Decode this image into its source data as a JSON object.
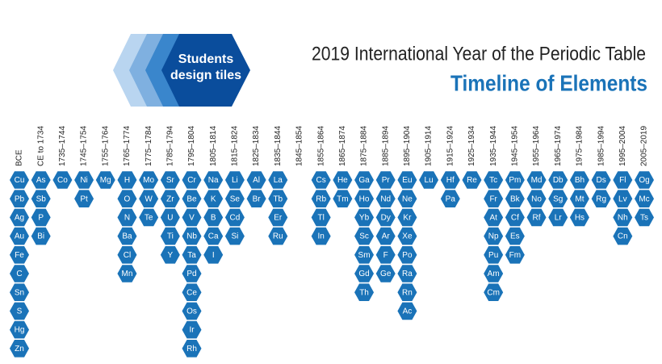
{
  "header": {
    "badge": [
      "Students",
      "design tiles"
    ],
    "title": "2019 International Year of the Periodic Table",
    "subtitle": "Timeline of Elements"
  },
  "columns": [
    {
      "label": "BCE",
      "elements": [
        "Cu",
        "Pb",
        "Ag",
        "Au",
        "Fe",
        "C",
        "Sn",
        "S",
        "Hg",
        "Zn"
      ]
    },
    {
      "label": "CE to 1734",
      "elements": [
        "As",
        "Sb",
        "P",
        "Bi"
      ]
    },
    {
      "label": "1735–1744",
      "elements": [
        "Co"
      ]
    },
    {
      "label": "1745–1754",
      "elements": [
        "Ni",
        "Pt"
      ]
    },
    {
      "label": "1755–1764",
      "elements": [
        "Mg"
      ]
    },
    {
      "label": "1765–1774",
      "elements": [
        "H",
        "O",
        "N",
        "Ba",
        "Cl",
        "Mn"
      ]
    },
    {
      "label": "1775–1784",
      "elements": [
        "Mo",
        "W",
        "Te"
      ]
    },
    {
      "label": "1785–1794",
      "elements": [
        "Sr",
        "Zr",
        "U",
        "Ti",
        "Y"
      ]
    },
    {
      "label": "1795–1804",
      "elements": [
        "Cr",
        "Be",
        "V",
        "Nb",
        "Ta",
        "Pd",
        "Ce",
        "Os",
        "Ir",
        "Rh"
      ]
    },
    {
      "label": "1805–1814",
      "elements": [
        "Na",
        "K",
        "B",
        "Ca",
        "I"
      ]
    },
    {
      "label": "1815–1824",
      "elements": [
        "Li",
        "Se",
        "Cd",
        "Si"
      ]
    },
    {
      "label": "1825–1834",
      "elements": [
        "Al",
        "Br"
      ]
    },
    {
      "label": "1835–1844",
      "elements": [
        "La",
        "Tb",
        "Er",
        "Ru"
      ]
    },
    {
      "label": "1845–1854",
      "elements": []
    },
    {
      "label": "1855–1864",
      "elements": [
        "Cs",
        "Rb",
        "Tl",
        "In"
      ]
    },
    {
      "label": "1865–1874",
      "elements": [
        "He",
        "Tm"
      ]
    },
    {
      "label": "1875–1884",
      "elements": [
        "Ga",
        "Ho",
        "Yb",
        "Sc",
        "Sm",
        "Gd",
        "Th"
      ]
    },
    {
      "label": "1885–1894",
      "elements": [
        "Pr",
        "Nd",
        "Dy",
        "Ar",
        "F",
        "Ge"
      ]
    },
    {
      "label": "1895–1904",
      "elements": [
        "Eu",
        "Ne",
        "Kr",
        "Xe",
        "Po",
        "Ra",
        "Rn",
        "Ac"
      ]
    },
    {
      "label": "1905–1914",
      "elements": [
        "Lu"
      ]
    },
    {
      "label": "1915–1924",
      "elements": [
        "Hf",
        "Pa"
      ]
    },
    {
      "label": "1925–1934",
      "elements": [
        "Re"
      ]
    },
    {
      "label": "1935–1944",
      "elements": [
        "Tc",
        "Fr",
        "At",
        "Np",
        "Pu",
        "Am",
        "Cm"
      ]
    },
    {
      "label": "1945–1954",
      "elements": [
        "Pm",
        "Bk",
        "Cf",
        "Es",
        "Fm"
      ]
    },
    {
      "label": "1955–1964",
      "elements": [
        "Md",
        "No",
        "Rf"
      ]
    },
    {
      "label": "1965–1974",
      "elements": [
        "Db",
        "Sg",
        "Lr"
      ]
    },
    {
      "label": "1975–1984",
      "elements": [
        "Bh",
        "Mt",
        "Hs"
      ]
    },
    {
      "label": "1985–1994",
      "elements": [
        "Ds",
        "Rg"
      ]
    },
    {
      "label": "1995–2004",
      "elements": [
        "Fl",
        "Lv",
        "Nh",
        "Cn"
      ]
    },
    {
      "label": "2005–2019",
      "elements": [
        "Og",
        "Mc",
        "Ts"
      ]
    }
  ]
}
